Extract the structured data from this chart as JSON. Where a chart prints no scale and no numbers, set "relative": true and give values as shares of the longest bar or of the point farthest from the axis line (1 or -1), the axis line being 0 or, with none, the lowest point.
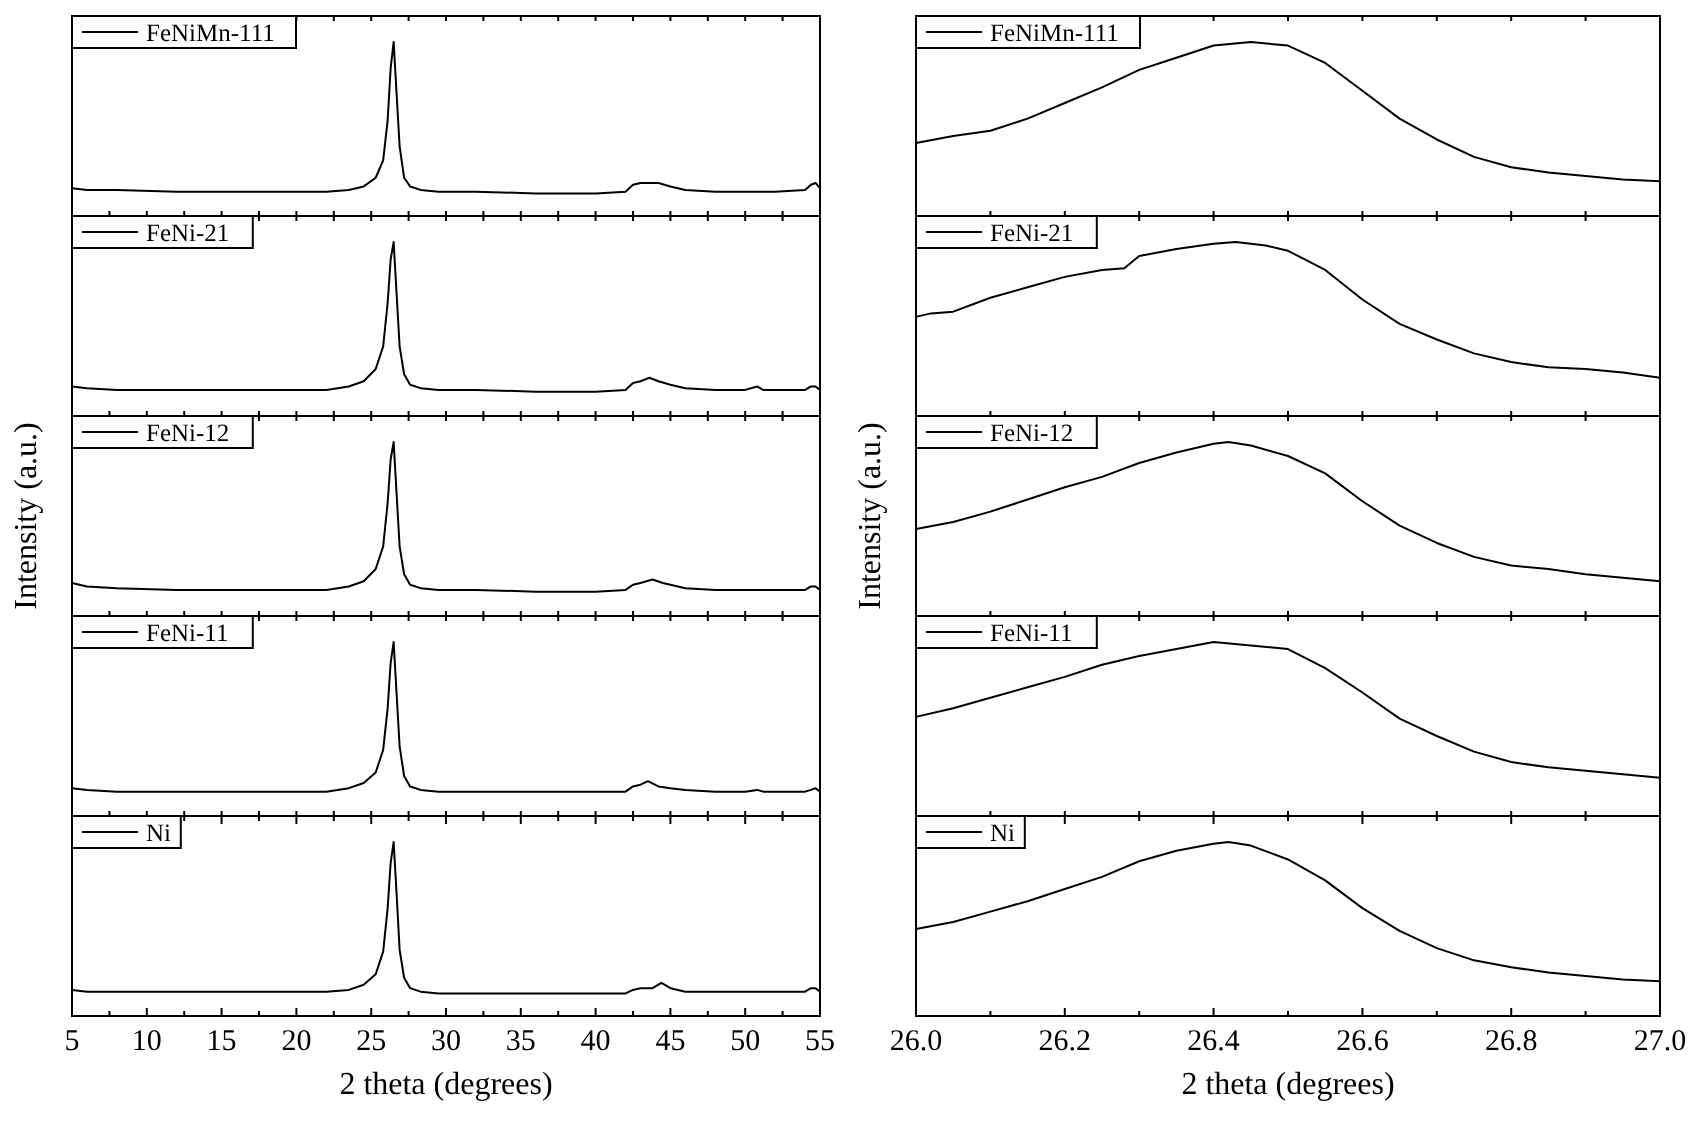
{
  "chart_data": [
    {
      "type": "line",
      "relative": true,
      "x": [
        5,
        6,
        8,
        12,
        16,
        20,
        22,
        23.5,
        24.5,
        25.3,
        25.8,
        26.1,
        26.3,
        26.5,
        26.7,
        26.9,
        27.2,
        27.6,
        28.3,
        29.5,
        32,
        36,
        40,
        42,
        42.5,
        43,
        43.6,
        44.2,
        45,
        46,
        48,
        50,
        52,
        54,
        54.4,
        54.7,
        55
      ],
      "series": [
        {
          "name": "FeNiMn-111",
          "color": "#000000",
          "values": [
            0.16,
            0.15,
            0.15,
            0.14,
            0.14,
            0.14,
            0.14,
            0.15,
            0.17,
            0.22,
            0.32,
            0.55,
            0.85,
            1,
            0.7,
            0.4,
            0.22,
            0.17,
            0.15,
            0.14,
            0.14,
            0.13,
            0.13,
            0.14,
            0.18,
            0.19,
            0.19,
            0.19,
            0.17,
            0.15,
            0.14,
            0.14,
            0.14,
            0.15,
            0.18,
            0.19,
            0.16
          ]
        }
      ],
      "xlim": [
        5,
        55
      ],
      "xticks": [
        {
          "value": 5,
          "label": null
        },
        {
          "value": 7.5,
          "label": null
        },
        {
          "value": 10,
          "label": null
        },
        {
          "value": 12.5,
          "label": null
        },
        {
          "value": 15,
          "label": null
        },
        {
          "value": 17.5,
          "label": null
        },
        {
          "value": 20,
          "label": null
        },
        {
          "value": 22.5,
          "label": null
        },
        {
          "value": 25,
          "label": null
        },
        {
          "value": 27.5,
          "label": null
        },
        {
          "value": 30,
          "label": null
        },
        {
          "value": 32.5,
          "label": null
        },
        {
          "value": 35,
          "label": null
        },
        {
          "value": 37.5,
          "label": null
        },
        {
          "value": 40,
          "label": null
        },
        {
          "value": 42.5,
          "label": null
        },
        {
          "value": 45,
          "label": null
        },
        {
          "value": 47.5,
          "label": null
        },
        {
          "value": 50,
          "label": null
        },
        {
          "value": 52.5,
          "label": null
        },
        {
          "value": 55,
          "label": null
        }
      ],
      "tick_labels": false,
      "legend": "top left"
    },
    {
      "type": "line",
      "relative": true,
      "x": [
        5,
        6,
        8,
        12,
        16,
        20,
        22,
        23.5,
        24.5,
        25.3,
        25.8,
        26.1,
        26.3,
        26.5,
        26.7,
        26.9,
        27.2,
        27.6,
        28.3,
        29.5,
        32,
        36,
        40,
        42,
        42.5,
        43,
        43.6,
        44.2,
        45,
        46,
        48,
        50,
        50.8,
        51.2,
        52,
        54,
        54.4,
        54.7,
        55
      ],
      "series": [
        {
          "name": "FeNi-21",
          "color": "#000000",
          "values": [
            0.17,
            0.16,
            0.15,
            0.15,
            0.15,
            0.15,
            0.15,
            0.17,
            0.2,
            0.27,
            0.4,
            0.65,
            0.9,
            1,
            0.7,
            0.4,
            0.24,
            0.18,
            0.16,
            0.15,
            0.15,
            0.14,
            0.14,
            0.15,
            0.19,
            0.2,
            0.22,
            0.2,
            0.18,
            0.16,
            0.15,
            0.15,
            0.17,
            0.15,
            0.15,
            0.15,
            0.17,
            0.17,
            0.15
          ]
        }
      ],
      "xlim": [
        5,
        55
      ],
      "xticks": [
        {
          "value": 5,
          "label": null
        },
        {
          "value": 7.5,
          "label": null
        },
        {
          "value": 10,
          "label": null
        },
        {
          "value": 12.5,
          "label": null
        },
        {
          "value": 15,
          "label": null
        },
        {
          "value": 17.5,
          "label": null
        },
        {
          "value": 20,
          "label": null
        },
        {
          "value": 22.5,
          "label": null
        },
        {
          "value": 25,
          "label": null
        },
        {
          "value": 27.5,
          "label": null
        },
        {
          "value": 30,
          "label": null
        },
        {
          "value": 32.5,
          "label": null
        },
        {
          "value": 35,
          "label": null
        },
        {
          "value": 37.5,
          "label": null
        },
        {
          "value": 40,
          "label": null
        },
        {
          "value": 42.5,
          "label": null
        },
        {
          "value": 45,
          "label": null
        },
        {
          "value": 47.5,
          "label": null
        },
        {
          "value": 50,
          "label": null
        },
        {
          "value": 52.5,
          "label": null
        },
        {
          "value": 55,
          "label": null
        }
      ],
      "tick_labels": false,
      "legend": "top left"
    },
    {
      "type": "line",
      "relative": true,
      "ylabel": "Intensity (a.u.)",
      "x": [
        5,
        6,
        8,
        12,
        16,
        20,
        22,
        23.5,
        24.5,
        25.3,
        25.8,
        26.1,
        26.3,
        26.5,
        26.7,
        26.9,
        27.2,
        27.6,
        28.3,
        29.5,
        32,
        36,
        40,
        42,
        42.5,
        43,
        43.8,
        44.5,
        45,
        46,
        48,
        50,
        52,
        54,
        54.4,
        54.7,
        55
      ],
      "series": [
        {
          "name": "FeNi-12",
          "color": "#000000",
          "values": [
            0.19,
            0.17,
            0.16,
            0.15,
            0.15,
            0.15,
            0.15,
            0.17,
            0.2,
            0.27,
            0.4,
            0.65,
            0.9,
            1,
            0.7,
            0.4,
            0.24,
            0.18,
            0.16,
            0.15,
            0.15,
            0.14,
            0.14,
            0.15,
            0.18,
            0.19,
            0.21,
            0.19,
            0.18,
            0.16,
            0.15,
            0.15,
            0.15,
            0.15,
            0.17,
            0.17,
            0.15
          ]
        }
      ],
      "xlim": [
        5,
        55
      ],
      "xticks": [
        {
          "value": 5,
          "label": null
        },
        {
          "value": 7.5,
          "label": null
        },
        {
          "value": 10,
          "label": null
        },
        {
          "value": 12.5,
          "label": null
        },
        {
          "value": 15,
          "label": null
        },
        {
          "value": 17.5,
          "label": null
        },
        {
          "value": 20,
          "label": null
        },
        {
          "value": 22.5,
          "label": null
        },
        {
          "value": 25,
          "label": null
        },
        {
          "value": 27.5,
          "label": null
        },
        {
          "value": 30,
          "label": null
        },
        {
          "value": 32.5,
          "label": null
        },
        {
          "value": 35,
          "label": null
        },
        {
          "value": 37.5,
          "label": null
        },
        {
          "value": 40,
          "label": null
        },
        {
          "value": 42.5,
          "label": null
        },
        {
          "value": 45,
          "label": null
        },
        {
          "value": 47.5,
          "label": null
        },
        {
          "value": 50,
          "label": null
        },
        {
          "value": 52.5,
          "label": null
        },
        {
          "value": 55,
          "label": null
        }
      ],
      "tick_labels": false,
      "legend": "top left"
    },
    {
      "type": "line",
      "relative": true,
      "x": [
        5,
        6,
        8,
        12,
        16,
        20,
        22,
        23.5,
        24.5,
        25.3,
        25.8,
        26.1,
        26.3,
        26.5,
        26.7,
        26.9,
        27.2,
        27.6,
        28.3,
        29.5,
        32,
        36,
        40,
        42,
        42.5,
        43,
        43.5,
        44.2,
        45,
        46,
        48,
        50,
        50.8,
        51.2,
        52,
        54,
        54.4,
        54.7,
        55
      ],
      "series": [
        {
          "name": "FeNi-11",
          "color": "#000000",
          "values": [
            0.16,
            0.15,
            0.14,
            0.14,
            0.14,
            0.14,
            0.14,
            0.16,
            0.19,
            0.25,
            0.38,
            0.62,
            0.88,
            1,
            0.7,
            0.4,
            0.23,
            0.17,
            0.15,
            0.14,
            0.14,
            0.14,
            0.14,
            0.14,
            0.17,
            0.18,
            0.2,
            0.17,
            0.16,
            0.15,
            0.14,
            0.14,
            0.15,
            0.14,
            0.14,
            0.14,
            0.15,
            0.16,
            0.14
          ]
        }
      ],
      "xlim": [
        5,
        55
      ],
      "xticks": [
        {
          "value": 5,
          "label": null
        },
        {
          "value": 7.5,
          "label": null
        },
        {
          "value": 10,
          "label": null
        },
        {
          "value": 12.5,
          "label": null
        },
        {
          "value": 15,
          "label": null
        },
        {
          "value": 17.5,
          "label": null
        },
        {
          "value": 20,
          "label": null
        },
        {
          "value": 22.5,
          "label": null
        },
        {
          "value": 25,
          "label": null
        },
        {
          "value": 27.5,
          "label": null
        },
        {
          "value": 30,
          "label": null
        },
        {
          "value": 32.5,
          "label": null
        },
        {
          "value": 35,
          "label": null
        },
        {
          "value": 37.5,
          "label": null
        },
        {
          "value": 40,
          "label": null
        },
        {
          "value": 42.5,
          "label": null
        },
        {
          "value": 45,
          "label": null
        },
        {
          "value": 47.5,
          "label": null
        },
        {
          "value": 50,
          "label": null
        },
        {
          "value": 52.5,
          "label": null
        },
        {
          "value": 55,
          "label": null
        }
      ],
      "tick_labels": false,
      "legend": "top left"
    },
    {
      "type": "line",
      "relative": true,
      "xlabel": "2 theta (degrees)",
      "x": [
        5,
        6,
        8,
        12,
        16,
        20,
        22,
        23.5,
        24.5,
        25.3,
        25.8,
        26.1,
        26.3,
        26.5,
        26.7,
        26.9,
        27.2,
        27.6,
        28.3,
        29.5,
        32,
        36,
        40,
        42,
        42.5,
        43,
        43.8,
        44.4,
        45,
        46,
        48,
        50,
        52,
        54,
        54.4,
        54.7,
        55
      ],
      "series": [
        {
          "name": "Ni",
          "color": "#000000",
          "values": [
            0.15,
            0.14,
            0.14,
            0.14,
            0.14,
            0.14,
            0.14,
            0.15,
            0.18,
            0.24,
            0.37,
            0.62,
            0.88,
            1,
            0.7,
            0.38,
            0.22,
            0.16,
            0.14,
            0.13,
            0.13,
            0.13,
            0.13,
            0.13,
            0.15,
            0.16,
            0.16,
            0.19,
            0.16,
            0.14,
            0.14,
            0.14,
            0.14,
            0.14,
            0.16,
            0.16,
            0.14
          ]
        }
      ],
      "xlim": [
        5,
        55
      ],
      "xticks": [
        5,
        {
          "value": 7.5,
          "label": null
        },
        10,
        {
          "value": 12.5,
          "label": null
        },
        15,
        {
          "value": 17.5,
          "label": null
        },
        20,
        {
          "value": 22.5,
          "label": null
        },
        25,
        {
          "value": 27.5,
          "label": null
        },
        30,
        {
          "value": 32.5,
          "label": null
        },
        35,
        {
          "value": 37.5,
          "label": null
        },
        40,
        {
          "value": 42.5,
          "label": null
        },
        45,
        {
          "value": 47.5,
          "label": null
        },
        50,
        {
          "value": 52.5,
          "label": null
        },
        55
      ],
      "tick_labels": "x",
      "legend": "top left"
    },
    {
      "type": "line",
      "relative": true,
      "x": [
        26,
        26.05,
        26.1,
        26.15,
        26.2,
        26.25,
        26.3,
        26.35,
        26.4,
        26.45,
        26.5,
        26.55,
        26.6,
        26.65,
        26.7,
        26.75,
        26.8,
        26.85,
        26.9,
        26.95,
        27
      ],
      "series": [
        {
          "name": "FeNiMn-111",
          "color": "#000000",
          "values": [
            0.42,
            0.46,
            0.49,
            0.56,
            0.65,
            0.74,
            0.84,
            0.91,
            0.98,
            1,
            0.98,
            0.88,
            0.72,
            0.56,
            0.44,
            0.34,
            0.28,
            0.25,
            0.23,
            0.21,
            0.2
          ]
        }
      ],
      "xlim": [
        26,
        27
      ],
      "xticks": [
        {
          "value": 26,
          "label": null
        },
        {
          "value": 26.1,
          "label": null
        },
        {
          "value": 26.2,
          "label": null
        },
        {
          "value": 26.3,
          "label": null
        },
        {
          "value": 26.4,
          "label": null
        },
        {
          "value": 26.5,
          "label": null
        },
        {
          "value": 26.6,
          "label": null
        },
        {
          "value": 26.7,
          "label": null
        },
        {
          "value": 26.8,
          "label": null
        },
        {
          "value": 26.9,
          "label": null
        },
        {
          "value": 27,
          "label": null
        }
      ],
      "tick_labels": false,
      "legend": "top left"
    },
    {
      "type": "line",
      "relative": true,
      "x": [
        26,
        26.02,
        26.05,
        26.1,
        26.15,
        26.2,
        26.25,
        26.28,
        26.3,
        26.35,
        26.4,
        26.43,
        26.47,
        26.5,
        26.55,
        26.6,
        26.65,
        26.7,
        26.75,
        26.8,
        26.85,
        26.9,
        26.95,
        27
      ],
      "series": [
        {
          "name": "FeNi-21",
          "color": "#000000",
          "values": [
            0.57,
            0.59,
            0.6,
            0.68,
            0.74,
            0.8,
            0.84,
            0.85,
            0.92,
            0.96,
            0.99,
            1,
            0.98,
            0.95,
            0.84,
            0.67,
            0.53,
            0.44,
            0.36,
            0.31,
            0.28,
            0.27,
            0.25,
            0.22
          ]
        }
      ],
      "xlim": [
        26,
        27
      ],
      "xticks": [
        {
          "value": 26,
          "label": null
        },
        {
          "value": 26.1,
          "label": null
        },
        {
          "value": 26.2,
          "label": null
        },
        {
          "value": 26.3,
          "label": null
        },
        {
          "value": 26.4,
          "label": null
        },
        {
          "value": 26.5,
          "label": null
        },
        {
          "value": 26.6,
          "label": null
        },
        {
          "value": 26.7,
          "label": null
        },
        {
          "value": 26.8,
          "label": null
        },
        {
          "value": 26.9,
          "label": null
        },
        {
          "value": 27,
          "label": null
        }
      ],
      "tick_labels": false,
      "legend": "top left"
    },
    {
      "type": "line",
      "relative": true,
      "ylabel": "Intensity (a.u.)",
      "x": [
        26,
        26.05,
        26.1,
        26.15,
        26.2,
        26.25,
        26.3,
        26.35,
        26.4,
        26.42,
        26.45,
        26.5,
        26.55,
        26.6,
        26.65,
        26.7,
        26.75,
        26.8,
        26.85,
        26.9,
        26.95,
        27
      ],
      "series": [
        {
          "name": "FeNi-12",
          "color": "#000000",
          "values": [
            0.5,
            0.54,
            0.6,
            0.67,
            0.74,
            0.8,
            0.88,
            0.94,
            0.99,
            1,
            0.98,
            0.92,
            0.82,
            0.66,
            0.52,
            0.42,
            0.34,
            0.29,
            0.27,
            0.24,
            0.22,
            0.2
          ]
        }
      ],
      "xlim": [
        26,
        27
      ],
      "xticks": [
        {
          "value": 26,
          "label": null
        },
        {
          "value": 26.1,
          "label": null
        },
        {
          "value": 26.2,
          "label": null
        },
        {
          "value": 26.3,
          "label": null
        },
        {
          "value": 26.4,
          "label": null
        },
        {
          "value": 26.5,
          "label": null
        },
        {
          "value": 26.6,
          "label": null
        },
        {
          "value": 26.7,
          "label": null
        },
        {
          "value": 26.8,
          "label": null
        },
        {
          "value": 26.9,
          "label": null
        },
        {
          "value": 27,
          "label": null
        }
      ],
      "tick_labels": false,
      "legend": "top left"
    },
    {
      "type": "line",
      "relative": true,
      "x": [
        26,
        26.05,
        26.1,
        26.15,
        26.2,
        26.25,
        26.3,
        26.35,
        26.4,
        26.45,
        26.5,
        26.55,
        26.6,
        26.65,
        26.7,
        26.75,
        26.8,
        26.85,
        26.9,
        26.95,
        27
      ],
      "series": [
        {
          "name": "FeNi-11",
          "color": "#000000",
          "values": [
            0.57,
            0.62,
            0.68,
            0.74,
            0.8,
            0.87,
            0.92,
            0.96,
            1,
            0.98,
            0.96,
            0.85,
            0.71,
            0.56,
            0.46,
            0.37,
            0.31,
            0.28,
            0.26,
            0.24,
            0.22
          ]
        }
      ],
      "xlim": [
        26,
        27
      ],
      "xticks": [
        {
          "value": 26,
          "label": null
        },
        {
          "value": 26.1,
          "label": null
        },
        {
          "value": 26.2,
          "label": null
        },
        {
          "value": 26.3,
          "label": null
        },
        {
          "value": 26.4,
          "label": null
        },
        {
          "value": 26.5,
          "label": null
        },
        {
          "value": 26.6,
          "label": null
        },
        {
          "value": 26.7,
          "label": null
        },
        {
          "value": 26.8,
          "label": null
        },
        {
          "value": 26.9,
          "label": null
        },
        {
          "value": 27,
          "label": null
        }
      ],
      "tick_labels": false,
      "legend": "top left"
    },
    {
      "type": "line",
      "relative": true,
      "xlabel": "2 theta (degrees)",
      "x": [
        26,
        26.05,
        26.1,
        26.15,
        26.2,
        26.25,
        26.3,
        26.35,
        26.4,
        26.42,
        26.45,
        26.5,
        26.55,
        26.6,
        26.65,
        26.7,
        26.75,
        26.8,
        26.85,
        26.9,
        26.95,
        27
      ],
      "series": [
        {
          "name": "Ni",
          "color": "#000000",
          "values": [
            0.5,
            0.54,
            0.6,
            0.66,
            0.73,
            0.8,
            0.89,
            0.95,
            0.99,
            1,
            0.98,
            0.9,
            0.78,
            0.62,
            0.49,
            0.39,
            0.32,
            0.28,
            0.25,
            0.23,
            0.21,
            0.2
          ]
        }
      ],
      "xlim": [
        26,
        27
      ],
      "xticks": [
        {
          "value": 26,
          "label": "26.0"
        },
        {
          "value": 26.1,
          "label": null
        },
        26.2,
        {
          "value": 26.3,
          "label": null
        },
        26.4,
        {
          "value": 26.5,
          "label": null
        },
        26.6,
        {
          "value": 26.7,
          "label": null
        },
        26.8,
        {
          "value": 26.9,
          "label": null
        },
        {
          "value": 27,
          "label": "27.0"
        }
      ],
      "tick_labels": "x",
      "legend": "top left"
    }
  ]
}
